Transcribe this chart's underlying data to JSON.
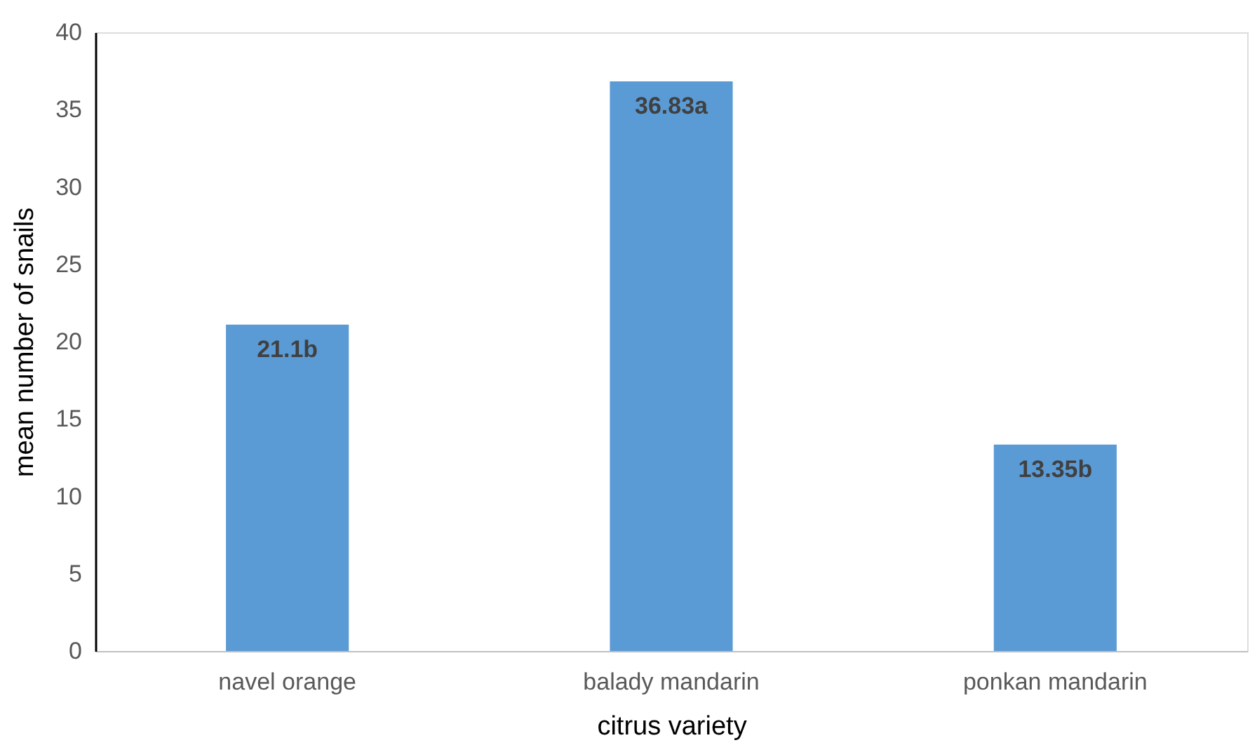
{
  "chart_data": {
    "type": "bar",
    "xlabel": "citrus variety",
    "ylabel": "mean number of snails",
    "categories": [
      "navel orange",
      "balady mandarin",
      "ponkan mandarin"
    ],
    "values": [
      21.1,
      36.83,
      13.35
    ],
    "value_labels": [
      "21.1b",
      "36.83a",
      "13.35b"
    ],
    "color": "#5b9bd5",
    "ylim": [
      0,
      40
    ],
    "yticks": [
      0,
      5,
      10,
      15,
      20,
      25,
      30,
      35,
      40
    ],
    "grid": false
  }
}
